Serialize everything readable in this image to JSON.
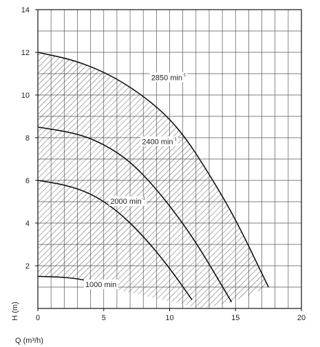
{
  "chart_data": {
    "type": "line",
    "title": "",
    "xlabel": "Q (m³/h)",
    "ylabel": "H (m)",
    "xlim": [
      0,
      20
    ],
    "ylim": [
      0,
      14
    ],
    "x_ticks": [
      0,
      5,
      10,
      15,
      20
    ],
    "y_ticks": [
      2,
      4,
      6,
      8,
      10,
      12,
      14
    ],
    "grid": true,
    "minor_grid_x_step": 1,
    "minor_grid_y_step": 1,
    "hatched_region": "operating envelope between 1000 min⁻¹ curve and 2850 min⁻¹ curve",
    "series": [
      {
        "name": "2850 min",
        "superscript": "-1",
        "label_at": [
          8.6,
          10.7
        ],
        "points": [
          [
            0,
            12.0
          ],
          [
            3,
            11.6
          ],
          [
            6,
            10.8
          ],
          [
            9,
            9.5
          ],
          [
            11,
            8.2
          ],
          [
            13,
            6.3
          ],
          [
            15,
            4.2
          ],
          [
            17.5,
            1.0
          ]
        ]
      },
      {
        "name": "2400 min",
        "superscript": "-1",
        "label_at": [
          7.9,
          7.7
        ],
        "points": [
          [
            0,
            8.5
          ],
          [
            3,
            8.2
          ],
          [
            5,
            7.7
          ],
          [
            7,
            6.9
          ],
          [
            9,
            5.6
          ],
          [
            11,
            4.0
          ],
          [
            12.5,
            2.6
          ],
          [
            14.7,
            0.3
          ]
        ]
      },
      {
        "name": "2000 min",
        "superscript": "-1",
        "label_at": [
          5.5,
          4.9
        ],
        "points": [
          [
            0,
            6.0
          ],
          [
            2,
            5.8
          ],
          [
            4,
            5.4
          ],
          [
            6,
            4.6
          ],
          [
            8,
            3.4
          ],
          [
            10,
            1.9
          ],
          [
            11.7,
            0.4
          ]
        ]
      },
      {
        "name": "1000 min",
        "superscript": "",
        "label_at": [
          3.6,
          1.0
        ],
        "points": [
          [
            0,
            1.5
          ],
          [
            1.5,
            1.48
          ],
          [
            3,
            1.4
          ],
          [
            4.3,
            1.22
          ],
          [
            5.2,
            0.98
          ]
        ]
      }
    ],
    "envelope": [
      [
        0,
        12.0
      ],
      [
        3,
        11.6
      ],
      [
        6,
        10.8
      ],
      [
        9,
        9.5
      ],
      [
        11,
        8.2
      ],
      [
        13,
        6.3
      ],
      [
        15,
        4.2
      ],
      [
        17.5,
        1.0
      ],
      [
        14.7,
        0.3
      ],
      [
        12.5,
        0.0
      ]
    ]
  }
}
